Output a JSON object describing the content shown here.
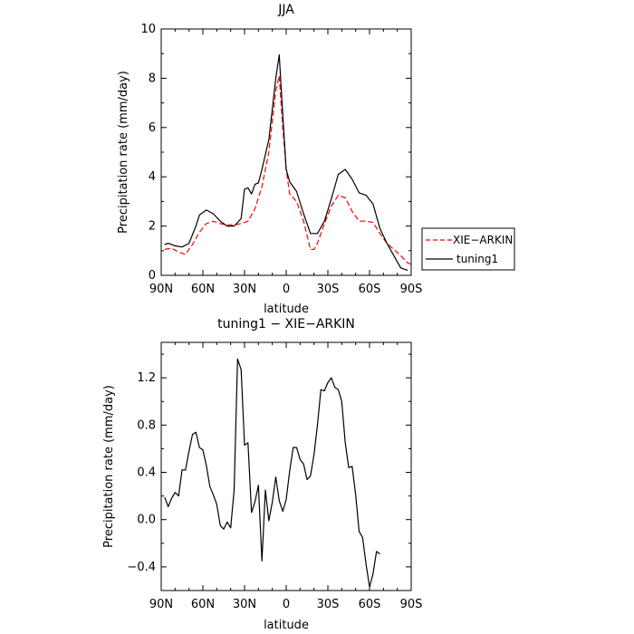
{
  "chart_data": [
    {
      "type": "line",
      "title": "JJA",
      "xlabel": "latitude",
      "ylabel": "Precipitation rate  (mm/day)",
      "x_axis": "latitude, 90N to 90S",
      "xlim": [
        "90N",
        "90S"
      ],
      "ylim": [
        0,
        10
      ],
      "x_ticks": [
        "90N",
        "60N",
        "30N",
        "0",
        "30S",
        "60S",
        "90S"
      ],
      "y_ticks": [
        "0",
        "2",
        "4",
        "6",
        "8",
        "10"
      ],
      "legend_position": "right",
      "grid": false,
      "series": [
        {
          "name": "XIE−ARKIN",
          "style": "dashed",
          "color": "#ff0000",
          "points": [
            [
              "87.5N",
              1.05
            ],
            [
              "82.5N",
              1.1
            ],
            [
              "77.5N",
              0.95
            ],
            [
              "72.5N",
              0.85
            ],
            [
              "67.5N",
              1.25
            ],
            [
              "62.5N",
              1.75
            ],
            [
              "57.5N",
              2.1
            ],
            [
              "52.5N",
              2.2
            ],
            [
              "47.5N",
              2.1
            ],
            [
              "42.5N",
              2.05
            ],
            [
              "37.5N",
              2.05
            ],
            [
              "32.5N",
              2.1
            ],
            [
              "27.5N",
              2.2
            ],
            [
              "22.5N",
              2.7
            ],
            [
              "17.5N",
              3.6
            ],
            [
              "12.5N",
              5.0
            ],
            [
              "7.5N",
              7.5
            ],
            [
              "5N",
              8.1
            ],
            [
              "2.5N",
              6.0
            ],
            [
              "0",
              4.3
            ],
            [
              "2.5S",
              3.3
            ],
            [
              "7.5S",
              3.0
            ],
            [
              "12.5S",
              2.2
            ],
            [
              "17.5S",
              1.05
            ],
            [
              "20S",
              1.05
            ],
            [
              "22.5S",
              1.3
            ],
            [
              "27.5S",
              2.1
            ],
            [
              "32.5S",
              2.8
            ],
            [
              "37.5S",
              3.25
            ],
            [
              "42.5S",
              3.15
            ],
            [
              "47.5S",
              2.6
            ],
            [
              "52.5S",
              2.2
            ],
            [
              "57.5S",
              2.2
            ],
            [
              "62.5S",
              2.15
            ],
            [
              "67.5S",
              1.7
            ],
            [
              "72.5S",
              1.3
            ],
            [
              "77.5S",
              1.05
            ],
            [
              "82.5S",
              0.8
            ],
            [
              "87.5S",
              0.5
            ],
            [
              "90S",
              0.45
            ]
          ]
        },
        {
          "name": "tuning1",
          "style": "solid",
          "color": "#000000",
          "points": [
            [
              "87.5N",
              1.25
            ],
            [
              "85N",
              1.3
            ],
            [
              "80N",
              1.2
            ],
            [
              "75N",
              1.15
            ],
            [
              "70N",
              1.3
            ],
            [
              "65N",
              2.0
            ],
            [
              "62.5N",
              2.45
            ],
            [
              "57.5N",
              2.65
            ],
            [
              "52.5N",
              2.5
            ],
            [
              "47.5N",
              2.2
            ],
            [
              "42.5N",
              2.0
            ],
            [
              "37.5N",
              2.0
            ],
            [
              "32.5N",
              2.3
            ],
            [
              "30N",
              3.5
            ],
            [
              "27.5N",
              3.55
            ],
            [
              "25N",
              3.3
            ],
            [
              "22.5N",
              3.7
            ],
            [
              "20N",
              3.75
            ],
            [
              "17.5N",
              4.3
            ],
            [
              "12.5N",
              5.5
            ],
            [
              "7.5N",
              8.0
            ],
            [
              "5N",
              8.95
            ],
            [
              "2.5N",
              6.5
            ],
            [
              "0",
              4.3
            ],
            [
              "2.5S",
              3.8
            ],
            [
              "7.5S",
              3.4
            ],
            [
              "12.5S",
              2.5
            ],
            [
              "17.5S",
              1.7
            ],
            [
              "22.5S",
              1.7
            ],
            [
              "27.5S",
              2.2
            ],
            [
              "32.5S",
              3.1
            ],
            [
              "37.5S",
              4.1
            ],
            [
              "42.5S",
              4.3
            ],
            [
              "47.5S",
              3.9
            ],
            [
              "52.5S",
              3.35
            ],
            [
              "57.5S",
              3.25
            ],
            [
              "62.5S",
              2.9
            ],
            [
              "67.5S",
              1.9
            ],
            [
              "72.5S",
              1.3
            ],
            [
              "77.5S",
              0.8
            ],
            [
              "82.5S",
              0.3
            ],
            [
              "87.5S",
              0.2
            ]
          ]
        }
      ]
    },
    {
      "type": "line",
      "title": "tuning1 − XIE−ARKIN",
      "xlabel": "latitude",
      "ylabel": "Precipitation rate  (mm/day)",
      "x_axis": "latitude, 90N to 90S",
      "xlim": [
        "90N",
        "90S"
      ],
      "ylim": [
        -0.6,
        1.5
      ],
      "x_ticks": [
        "90N",
        "60N",
        "30N",
        "0",
        "30S",
        "60S",
        "90S"
      ],
      "y_ticks": [
        "−0.4",
        "0.0",
        "0.4",
        "0.8",
        "1.2"
      ],
      "grid": false,
      "series": [
        {
          "name": "",
          "style": "solid",
          "color": "#000000",
          "points": [
            [
              "87.5N",
              0.19
            ],
            [
              "85N",
              0.11
            ],
            [
              "82.5N",
              0.18
            ],
            [
              "80N",
              0.23
            ],
            [
              "77.5N",
              0.2
            ],
            [
              "75N",
              0.42
            ],
            [
              "72.5N",
              0.42
            ],
            [
              "70N",
              0.58
            ],
            [
              "67.5N",
              0.72
            ],
            [
              "65N",
              0.74
            ],
            [
              "62.5N",
              0.61
            ],
            [
              "60N",
              0.59
            ],
            [
              "57.5N",
              0.46
            ],
            [
              "55N",
              0.28
            ],
            [
              "52.5N",
              0.21
            ],
            [
              "50N",
              0.13
            ],
            [
              "47.5N",
              -0.05
            ],
            [
              "45N",
              -0.08
            ],
            [
              "42.5N",
              -0.02
            ],
            [
              "40N",
              -0.07
            ],
            [
              "37.5N",
              0.25
            ],
            [
              "35N",
              1.36
            ],
            [
              "32.5N",
              1.27
            ],
            [
              "30N",
              0.63
            ],
            [
              "27.5N",
              0.65
            ],
            [
              "25N",
              0.06
            ],
            [
              "22.5N",
              0.15
            ],
            [
              "20N",
              0.29
            ],
            [
              "17.5N",
              -0.35
            ],
            [
              "15N",
              0.25
            ],
            [
              "12.5N",
              -0.01
            ],
            [
              "10N",
              0.15
            ],
            [
              "7.5N",
              0.36
            ],
            [
              "5N",
              0.16
            ],
            [
              "2.5N",
              0.07
            ],
            [
              "0",
              0.17
            ],
            [
              "2.5S",
              0.41
            ],
            [
              "5S",
              0.61
            ],
            [
              "7.5S",
              0.61
            ],
            [
              "10S",
              0.51
            ],
            [
              "12.5S",
              0.47
            ],
            [
              "15S",
              0.34
            ],
            [
              "17.5S",
              0.37
            ],
            [
              "20S",
              0.55
            ],
            [
              "22.5S",
              0.8
            ],
            [
              "25S",
              1.1
            ],
            [
              "27.5S",
              1.09
            ],
            [
              "30S",
              1.16
            ],
            [
              "32.5S",
              1.2
            ],
            [
              "35S",
              1.12
            ],
            [
              "37.5S",
              1.1
            ],
            [
              "40S",
              1.0
            ],
            [
              "42.5S",
              0.65
            ],
            [
              "45S",
              0.44
            ],
            [
              "47.5S",
              0.45
            ],
            [
              "50S",
              0.21
            ],
            [
              "52.5S",
              -0.1
            ],
            [
              "55S",
              -0.15
            ],
            [
              "57.5S",
              -0.38
            ],
            [
              "60S",
              -0.57
            ],
            [
              "62.5S",
              -0.46
            ],
            [
              "65S",
              -0.27
            ],
            [
              "67.5S",
              -0.29
            ]
          ]
        }
      ]
    }
  ]
}
